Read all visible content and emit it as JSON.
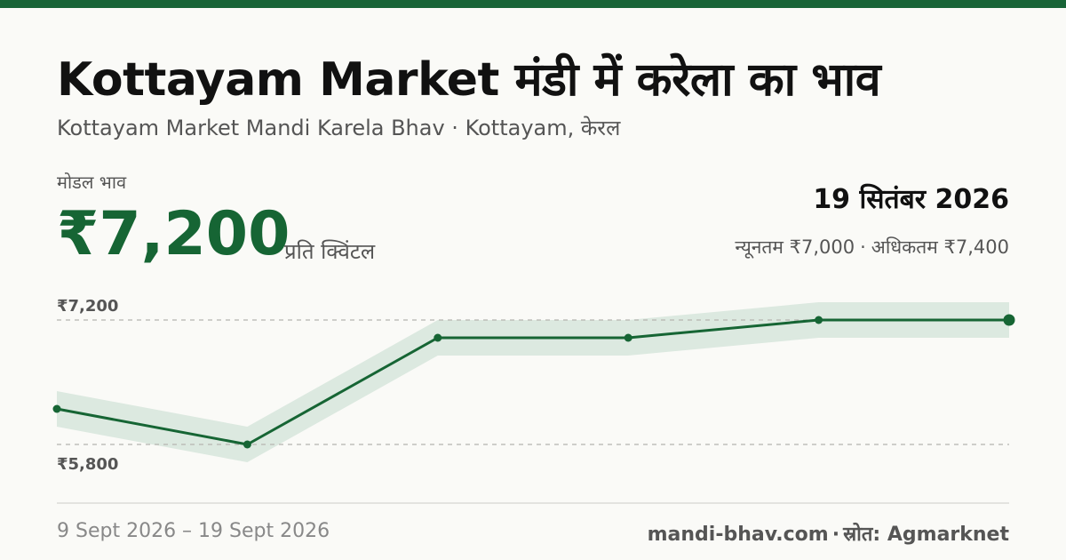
{
  "header": {
    "title": "Kottayam Market मंडी में करेला का भाव",
    "subtitle": "Kottayam Market Mandi Karela Bhav · Kottayam, केरल"
  },
  "price": {
    "label": "मोडल भाव",
    "value": "₹7,200",
    "unit": "प्रति क्विंटल"
  },
  "summary": {
    "date": "19 सितंबर 2026",
    "min": "न्यूनतम ₹7,000",
    "separator": "·",
    "max": "अधिकतम ₹7,400"
  },
  "footer": {
    "date_range": "9 Sept 2026 – 19 Sept 2026",
    "site": "mandi-bhav.com",
    "separator": "·",
    "source": "स्रोत: Agmarknet"
  },
  "colors": {
    "accent": "#186437",
    "line": "#166534",
    "band": "#dce9e0",
    "gridline": "#b5b5b0"
  },
  "chart_data": {
    "type": "line",
    "x": [
      "9 Sept 2026",
      "11 Sept 2026",
      "13 Sept 2026",
      "15 Sept 2026",
      "17 Sept 2026",
      "19 Sept 2026"
    ],
    "series": [
      {
        "values": [
          6200,
          5800,
          7000,
          7000,
          7200,
          7200
        ]
      }
    ],
    "band": {
      "lower": [
        6000,
        5600,
        6800,
        6800,
        7000,
        7000
      ],
      "upper": [
        6400,
        6000,
        7200,
        7200,
        7400,
        7400
      ]
    },
    "reference_lines": [
      {
        "value": 7200,
        "label": "₹7,200"
      },
      {
        "value": 5800,
        "label": "₹5,800"
      }
    ],
    "ylim": [
      5300,
      7600
    ],
    "grid": false,
    "legend": "none"
  }
}
